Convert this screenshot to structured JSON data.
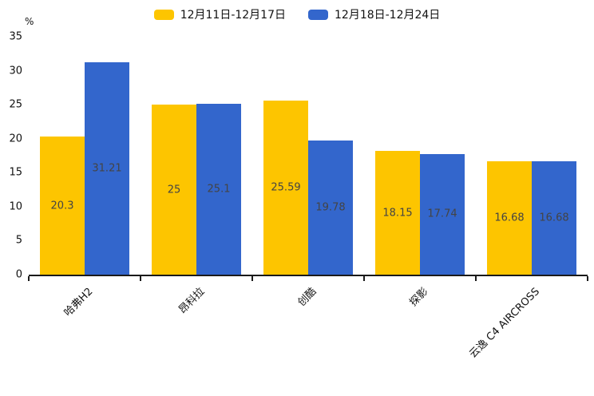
{
  "chart_data": {
    "type": "bar",
    "title": "",
    "xlabel": "",
    "ylabel": "%",
    "ylim": [
      0,
      35
    ],
    "yticks": [
      0,
      5,
      10,
      15,
      20,
      25,
      30,
      35
    ],
    "grid": false,
    "legend_position": "top",
    "categories": [
      "哈弗H2",
      "昂科拉",
      "创酷",
      "探影",
      "云逸 C4 AIRCROSS"
    ],
    "series": [
      {
        "name": "12月11日-12月17日",
        "color": "#FDC500",
        "values": [
          20.3,
          25,
          25.59,
          18.15,
          16.68
        ]
      },
      {
        "name": "12月18日-12月24日",
        "color": "#3366CC",
        "values": [
          31.21,
          25.1,
          19.78,
          17.74,
          16.68
        ]
      }
    ],
    "bar_value_labels": [
      [
        "20.3",
        "31.21"
      ],
      [
        "25",
        "25.1"
      ],
      [
        "25.59",
        "19.78"
      ],
      [
        "18.15",
        "17.74"
      ],
      [
        "16.68",
        "16.68"
      ]
    ],
    "colors": {
      "axis": "#1a1a1a",
      "bar_label_text": "#444444",
      "tick_text": "#111111"
    }
  }
}
